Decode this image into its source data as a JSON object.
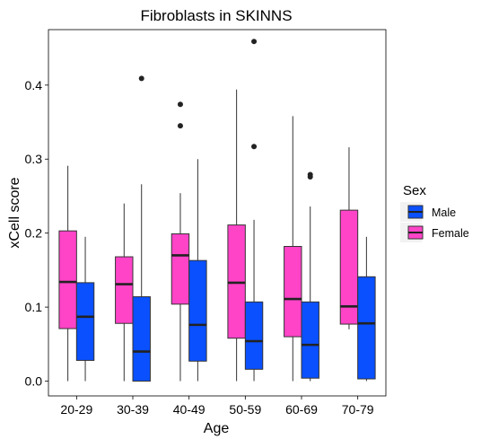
{
  "chart_data": {
    "type": "boxplot",
    "title": "Fibroblasts in SKINNS",
    "xlabel": "Age",
    "ylabel": "xCell score",
    "ylim": [
      -0.02,
      0.475
    ],
    "yticks": [
      0.0,
      0.1,
      0.2,
      0.3,
      0.4
    ],
    "ytick_labels": [
      "0.0",
      "0.1",
      "0.2",
      "0.3",
      "0.4"
    ],
    "categories": [
      "20-29",
      "30-39",
      "40-49",
      "50-59",
      "60-69",
      "70-79"
    ],
    "grid": false,
    "legend": {
      "title": "Sex",
      "placement": "right",
      "entries": [
        {
          "name": "Male",
          "color": "#0a50ff"
        },
        {
          "name": "Female",
          "color": "#ff44c8"
        }
      ]
    },
    "series": [
      {
        "name": "Female",
        "color": "#ff44c8",
        "boxes": [
          {
            "min": 0.0,
            "q1": 0.071,
            "median": 0.134,
            "q3": 0.203,
            "max": 0.291,
            "outliers": []
          },
          {
            "min": 0.0,
            "q1": 0.078,
            "median": 0.131,
            "q3": 0.168,
            "max": 0.24,
            "outliers": []
          },
          {
            "min": 0.0,
            "q1": 0.104,
            "median": 0.17,
            "q3": 0.199,
            "max": 0.254,
            "outliers": [
              0.374,
              0.345
            ]
          },
          {
            "min": 0.0,
            "q1": 0.058,
            "median": 0.133,
            "q3": 0.211,
            "max": 0.394,
            "outliers": []
          },
          {
            "min": 0.0,
            "q1": 0.06,
            "median": 0.111,
            "q3": 0.182,
            "max": 0.358,
            "outliers": []
          },
          {
            "min": 0.07,
            "q1": 0.077,
            "median": 0.101,
            "q3": 0.231,
            "max": 0.316,
            "outliers": []
          }
        ]
      },
      {
        "name": "Male",
        "color": "#0a50ff",
        "boxes": [
          {
            "min": 0.0,
            "q1": 0.028,
            "median": 0.087,
            "q3": 0.133,
            "max": 0.195,
            "outliers": []
          },
          {
            "min": 0.0,
            "q1": 0.0,
            "median": 0.04,
            "q3": 0.114,
            "max": 0.266,
            "outliers": [
              0.409
            ]
          },
          {
            "min": 0.0,
            "q1": 0.027,
            "median": 0.076,
            "q3": 0.163,
            "max": 0.3,
            "outliers": []
          },
          {
            "min": 0.0,
            "q1": 0.016,
            "median": 0.054,
            "q3": 0.107,
            "max": 0.218,
            "outliers": [
              0.459,
              0.317
            ]
          },
          {
            "min": 0.0,
            "q1": 0.004,
            "median": 0.049,
            "q3": 0.107,
            "max": 0.236,
            "outliers": [
              0.279,
              0.276
            ]
          },
          {
            "min": 0.0,
            "q1": 0.003,
            "median": 0.078,
            "q3": 0.141,
            "max": 0.195,
            "outliers": []
          }
        ]
      }
    ]
  }
}
